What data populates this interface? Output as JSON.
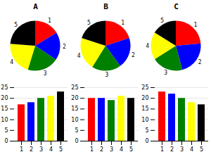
{
  "chart_data": [
    {
      "type": "pie",
      "title": "A",
      "categories": [
        "1",
        "2",
        "3",
        "4",
        "5"
      ],
      "values": [
        72,
        80,
        90,
        95,
        105
      ],
      "colors": [
        "red",
        "blue",
        "green",
        "yellow",
        "black"
      ]
    },
    {
      "type": "pie",
      "title": "B",
      "categories": [
        "1",
        "2",
        "3",
        "4",
        "5"
      ],
      "values": [
        90,
        90,
        85,
        95,
        90
      ],
      "colors": [
        "red",
        "blue",
        "green",
        "yellow",
        "black"
      ]
    },
    {
      "type": "pie",
      "title": "C",
      "categories": [
        "1",
        "2",
        "3",
        "4",
        "5"
      ],
      "values": [
        105,
        100,
        90,
        80,
        72
      ],
      "colors": [
        "red",
        "blue",
        "green",
        "yellow",
        "black"
      ]
    },
    {
      "type": "bar",
      "categories": [
        "1",
        "2",
        "3",
        "4",
        "5"
      ],
      "values": [
        17,
        18,
        20,
        21,
        23
      ],
      "colors": [
        "red",
        "blue",
        "green",
        "yellow",
        "black"
      ],
      "ylim": [
        0,
        25
      ],
      "yticks": [
        0,
        5,
        10,
        15,
        20,
        25
      ],
      "grid": true
    },
    {
      "type": "bar",
      "categories": [
        "1",
        "2",
        "3",
        "4",
        "5"
      ],
      "values": [
        20,
        20,
        19,
        21,
        20
      ],
      "colors": [
        "red",
        "blue",
        "green",
        "yellow",
        "black"
      ],
      "ylim": [
        0,
        25
      ],
      "yticks": [
        0,
        5,
        10,
        15,
        20,
        25
      ],
      "grid": true
    },
    {
      "type": "bar",
      "categories": [
        "1",
        "2",
        "3",
        "4",
        "5"
      ],
      "values": [
        23,
        22,
        20,
        18,
        17
      ],
      "colors": [
        "red",
        "blue",
        "green",
        "yellow",
        "black"
      ],
      "ylim": [
        0,
        25
      ],
      "yticks": [
        0,
        5,
        10,
        15,
        20,
        25
      ],
      "grid": true
    }
  ]
}
